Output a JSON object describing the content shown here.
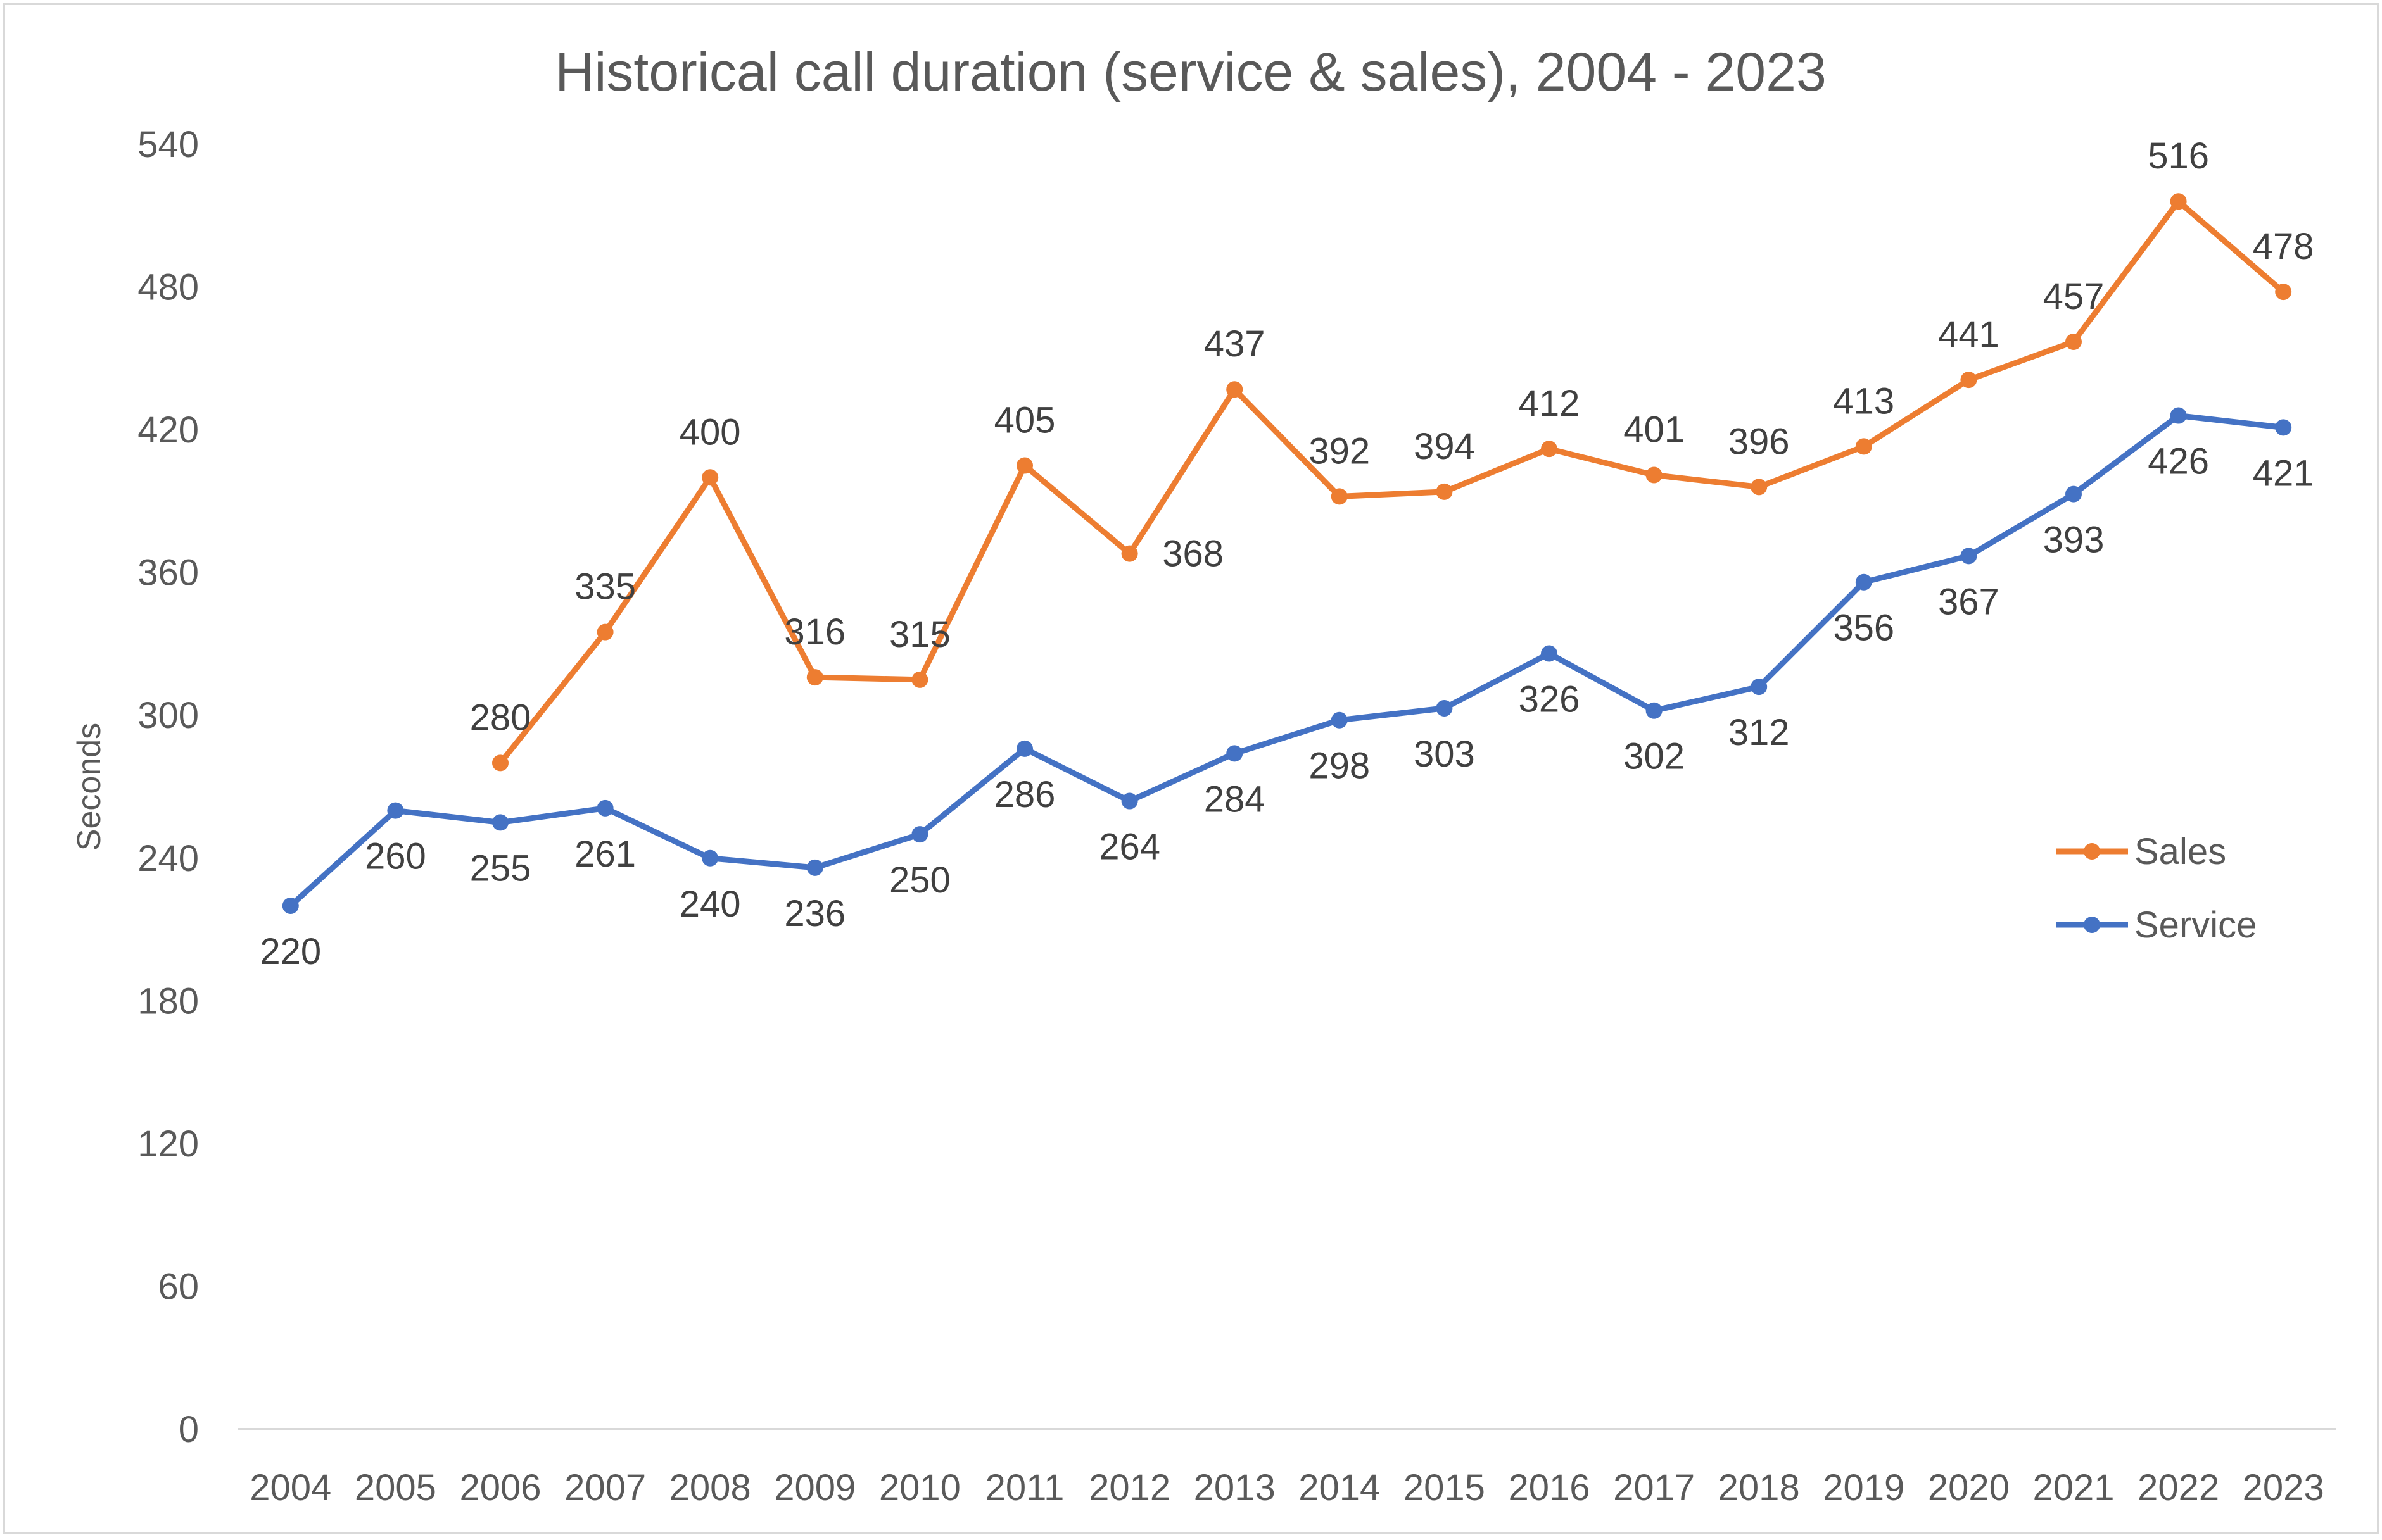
{
  "chart_data": {
    "type": "line",
    "title": "Historical call duration (service & sales), 2004 - 2023",
    "xlabel": "",
    "ylabel": "Seconds",
    "ylim": [
      0,
      540
    ],
    "y_ticks": [
      0,
      60,
      120,
      180,
      240,
      300,
      360,
      420,
      480,
      540
    ],
    "y_tick_labels": [
      "0",
      "60",
      "120",
      "180",
      "240",
      "300",
      "360",
      "420",
      "480",
      "540"
    ],
    "grid": false,
    "legend_position": "right",
    "categories": [
      "2004",
      "2005",
      "2006",
      "2007",
      "2008",
      "2009",
      "2010",
      "2011",
      "2012",
      "2013",
      "2014",
      "2015",
      "2016",
      "2017",
      "2018",
      "2019",
      "2020",
      "2021",
      "2022",
      "2023"
    ],
    "series": [
      {
        "name": "Sales",
        "color": "#ED7D31",
        "values": [
          null,
          null,
          280,
          335,
          400,
          316,
          315,
          405,
          368,
          437,
          392,
          394,
          412,
          401,
          396,
          413,
          441,
          457,
          516,
          478
        ],
        "label_positions": [
          "",
          "",
          "above",
          "above",
          "above",
          "above",
          "above",
          "above",
          "right",
          "above",
          "above",
          "above",
          "above",
          "above",
          "above",
          "above",
          "above",
          "above",
          "above",
          "above"
        ]
      },
      {
        "name": "Service",
        "color": "#4472C4",
        "values": [
          220,
          260,
          255,
          261,
          240,
          236,
          250,
          286,
          264,
          284,
          298,
          303,
          326,
          302,
          312,
          356,
          367,
          393,
          426,
          421
        ],
        "label_positions": [
          "below",
          "below",
          "below",
          "below",
          "below",
          "below",
          "below",
          "below",
          "below",
          "below",
          "below",
          "below",
          "below",
          "below",
          "below",
          "below",
          "below",
          "below",
          "below",
          "below"
        ]
      }
    ]
  }
}
